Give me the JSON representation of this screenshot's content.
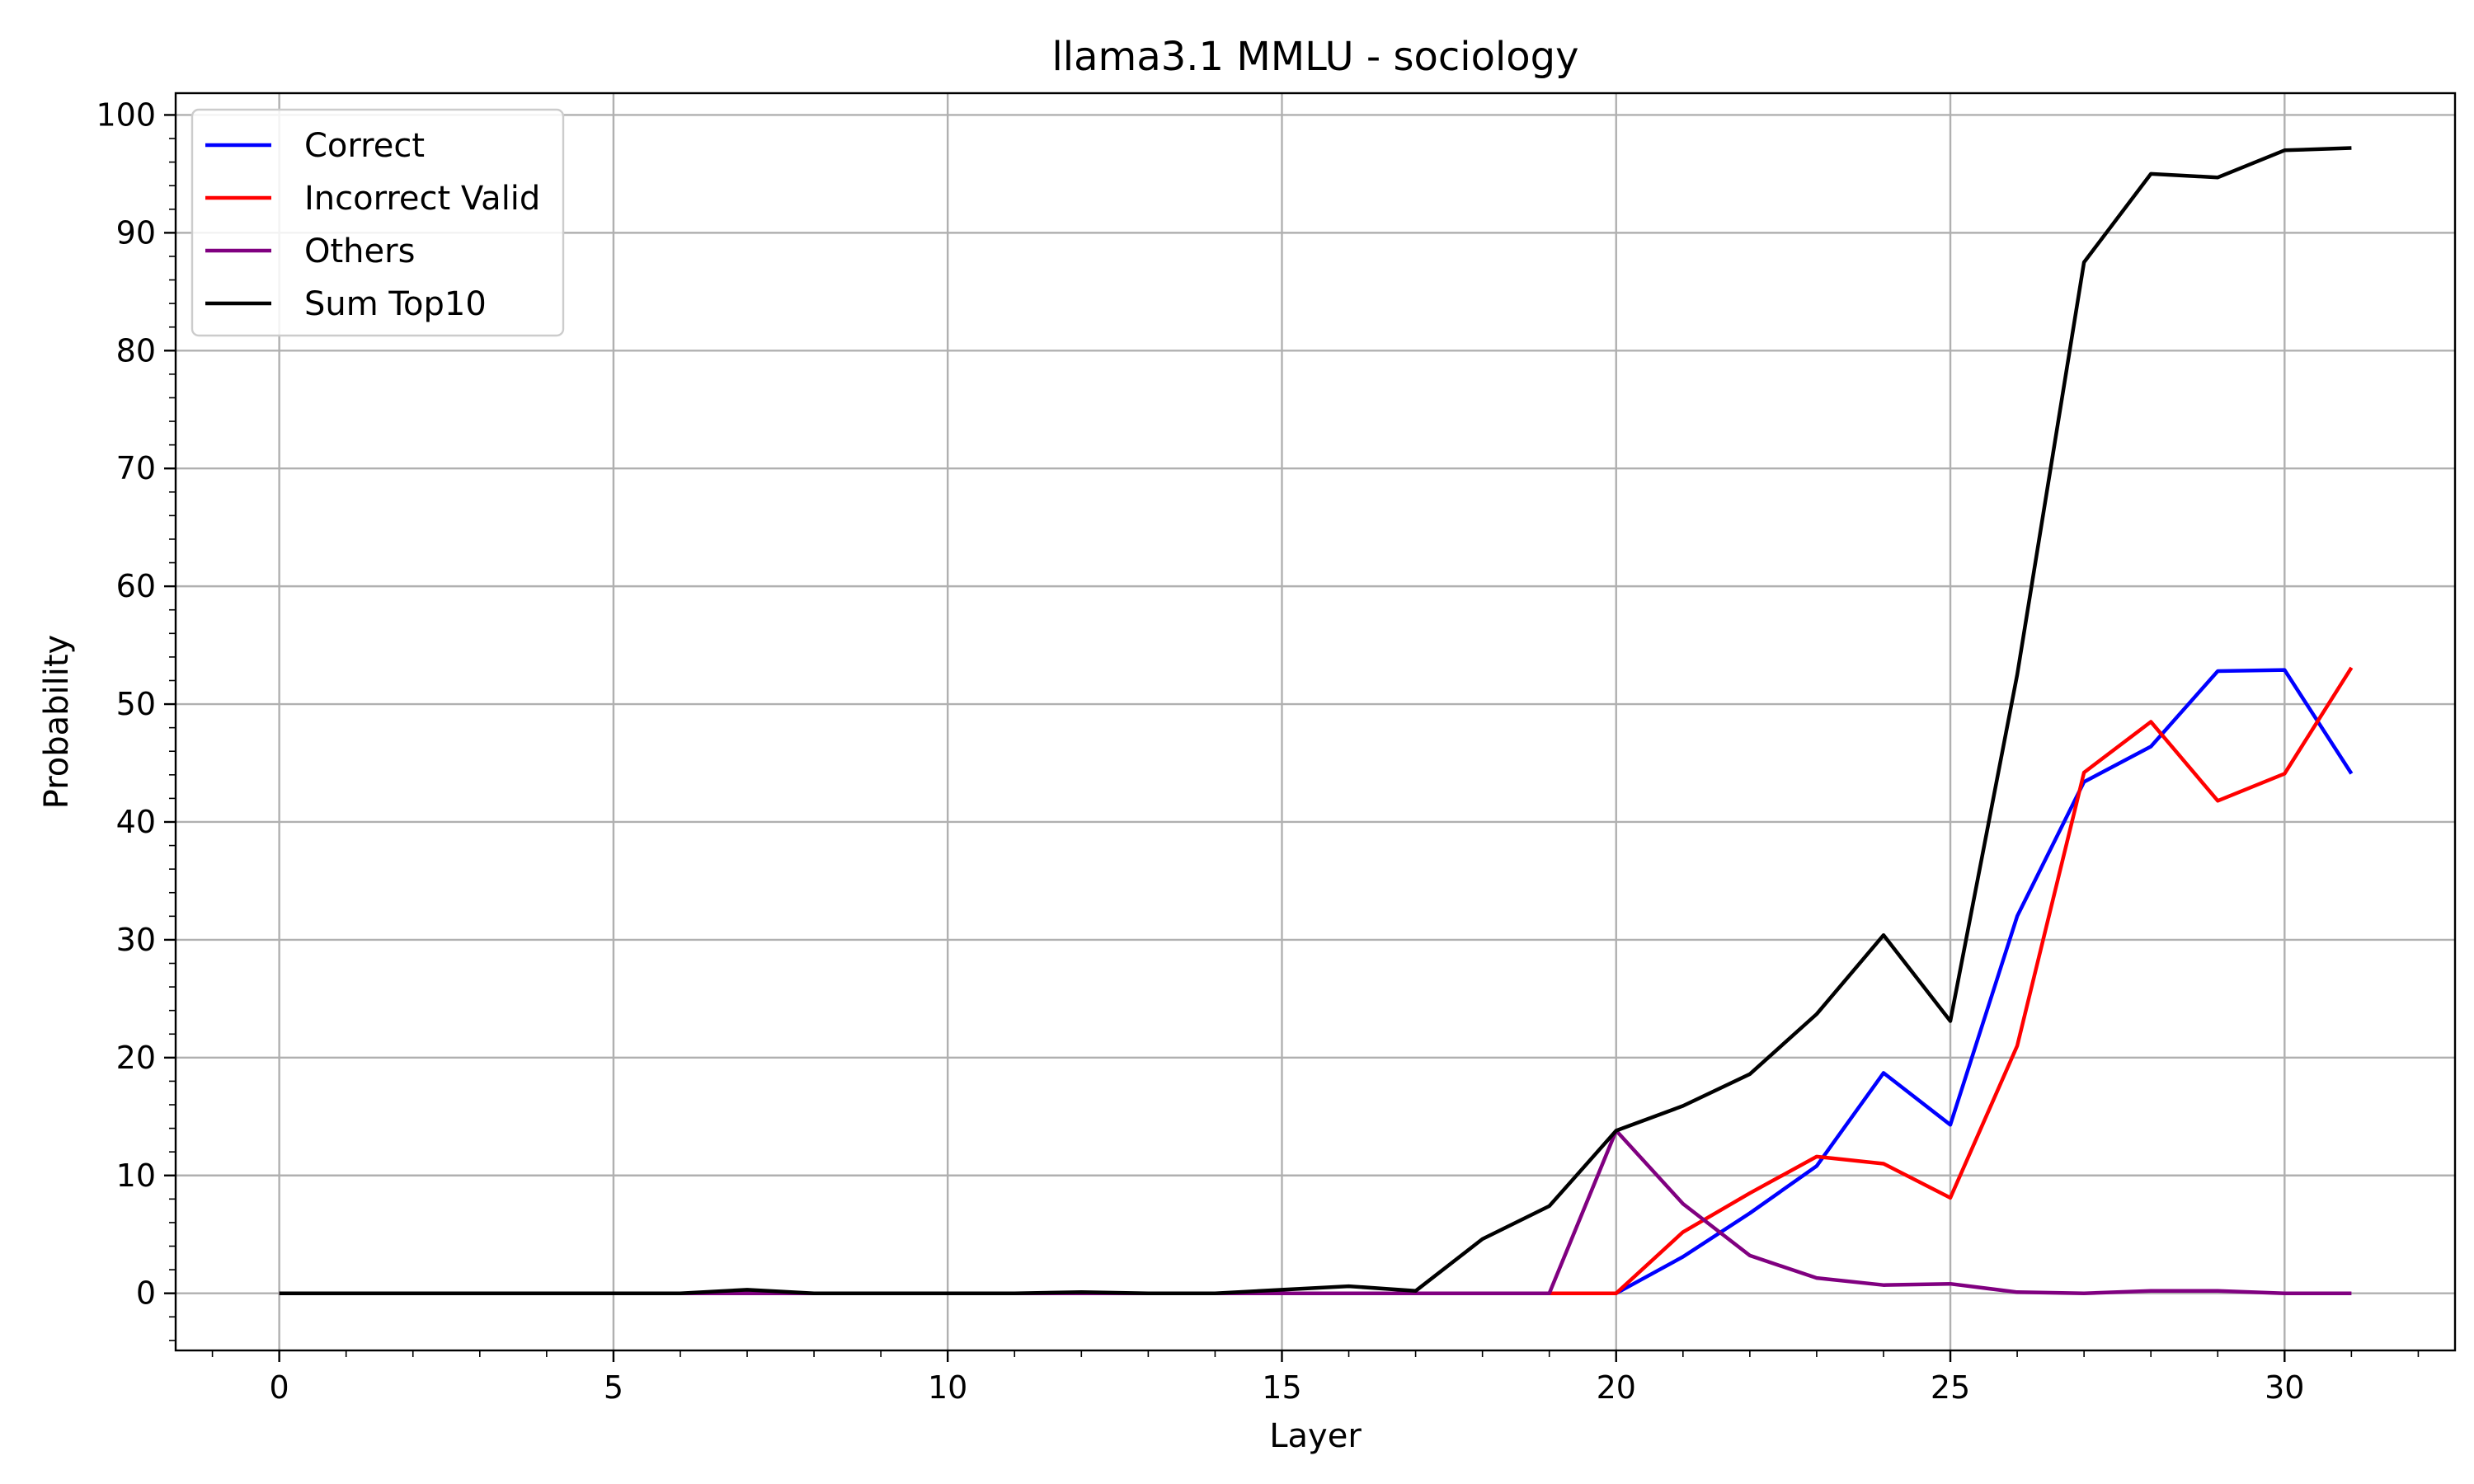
{
  "chart_data": {
    "type": "line",
    "title": "llama3.1 MMLU - sociology",
    "xlabel": "Layer",
    "ylabel": "Probability",
    "xlim": [
      -1.55,
      32.55
    ],
    "ylim": [
      -4.85,
      101.85
    ],
    "xticks": [
      0,
      5,
      10,
      15,
      20,
      25,
      30
    ],
    "yticks": [
      0,
      10,
      20,
      30,
      40,
      50,
      60,
      70,
      80,
      90,
      100
    ],
    "x_minor_step": 1,
    "y_minor_step": 2,
    "grid": true,
    "legend_position": "top-left",
    "x": [
      0,
      1,
      2,
      3,
      4,
      5,
      6,
      7,
      8,
      9,
      10,
      11,
      12,
      13,
      14,
      15,
      16,
      17,
      18,
      19,
      20,
      21,
      22,
      23,
      24,
      25,
      26,
      27,
      28,
      29,
      30,
      31
    ],
    "series": [
      {
        "name": "Correct",
        "color": "#0000ff",
        "values": [
          0,
          0,
          0,
          0,
          0,
          0,
          0,
          0,
          0,
          0,
          0,
          0,
          0,
          0,
          0,
          0,
          0,
          0,
          0,
          0,
          0,
          3.1,
          6.8,
          10.8,
          18.7,
          14.3,
          32.0,
          43.4,
          46.4,
          52.8,
          52.9,
          44.1
        ]
      },
      {
        "name": "Incorrect Valid",
        "color": "#ff0000",
        "values": [
          0,
          0,
          0,
          0,
          0,
          0,
          0,
          0,
          0,
          0,
          0,
          0,
          0,
          0,
          0,
          0,
          0,
          0,
          0,
          0,
          0,
          5.2,
          8.5,
          11.6,
          11.0,
          8.1,
          21.0,
          44.2,
          48.5,
          41.8,
          44.1,
          53.1
        ]
      },
      {
        "name": "Others",
        "color": "#800080",
        "values": [
          0,
          0,
          0,
          0,
          0,
          0,
          0,
          0,
          0,
          0,
          0,
          0,
          0,
          0,
          0,
          0,
          0,
          0,
          0,
          0,
          13.8,
          7.6,
          3.2,
          1.3,
          0.7,
          0.8,
          0.1,
          0,
          0.2,
          0.2,
          0,
          0
        ]
      },
      {
        "name": "Sum Top10",
        "color": "#000000",
        "values": [
          0,
          0,
          0,
          0,
          0,
          0,
          0,
          0.3,
          0,
          0,
          0,
          0,
          0.1,
          0,
          0,
          0.3,
          0.6,
          0.2,
          4.6,
          7.4,
          13.8,
          15.9,
          18.6,
          23.7,
          30.4,
          23.1,
          52.5,
          87.5,
          95.0,
          94.7,
          97.0,
          97.2
        ]
      }
    ]
  }
}
